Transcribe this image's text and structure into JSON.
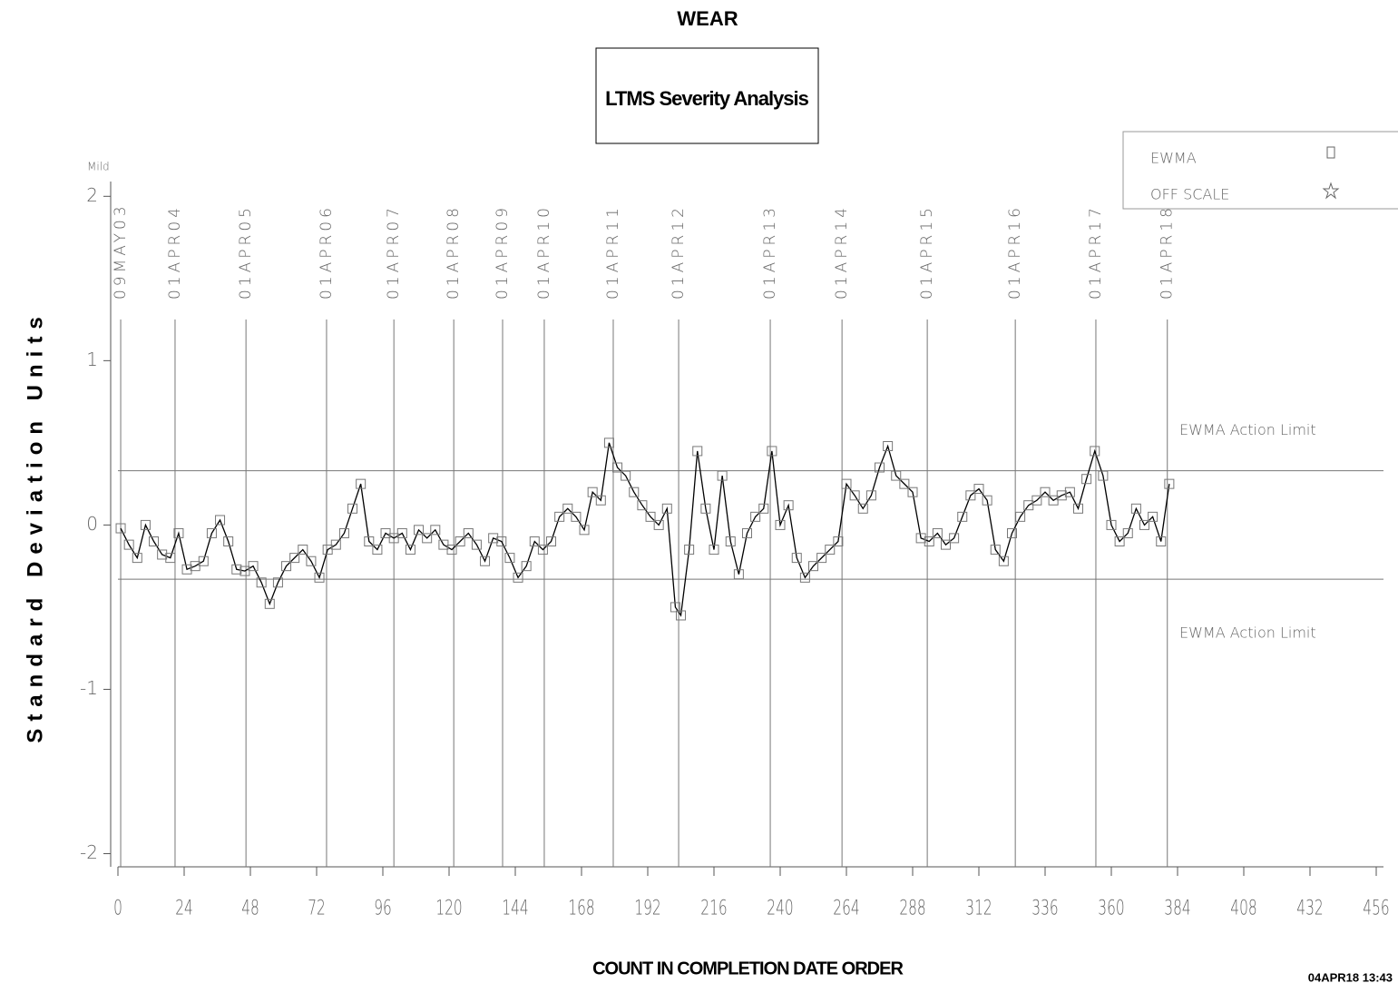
{
  "chart_data": {
    "type": "line",
    "title": "WEAR",
    "subtitle": "LTMS Severity Analysis",
    "x_label": "COUNT IN COMPLETION DATE ORDER",
    "y_label": "Standard Deviation Units",
    "y_top_label": "Mild",
    "timestamp": "04APR18 13:43",
    "xlim": [
      0,
      456
    ],
    "xticks": [
      0,
      24,
      48,
      72,
      96,
      120,
      144,
      168,
      192,
      216,
      240,
      264,
      288,
      312,
      336,
      360,
      384,
      408,
      432,
      456
    ],
    "ylim": [
      -2.08,
      2.09
    ],
    "yticks": [
      -2,
      -1,
      0,
      1,
      2
    ],
    "legend": {
      "position": "upper right",
      "entries": [
        "EWMA",
        "OFF SCALE"
      ]
    },
    "action_limits": [
      {
        "label": "EWMA Action Limit",
        "value": 0.33
      },
      {
        "label": "EWMA Action Limit",
        "value": -0.33
      }
    ],
    "date_lines": [
      {
        "label": "09MAY03",
        "x": 1
      },
      {
        "label": "01APR04",
        "x": 20.7
      },
      {
        "label": "01APR05",
        "x": 46.4
      },
      {
        "label": "01APR06",
        "x": 75.6
      },
      {
        "label": "01APR07",
        "x": 100
      },
      {
        "label": "01APR08",
        "x": 121.7
      },
      {
        "label": "01APR09",
        "x": 139.4
      },
      {
        "label": "01APR10",
        "x": 154.5
      },
      {
        "label": "01APR11",
        "x": 179.5
      },
      {
        "label": "01APR12",
        "x": 203.2
      },
      {
        "label": "01APR13",
        "x": 236.4
      },
      {
        "label": "01APR14",
        "x": 262.4
      },
      {
        "label": "01APR15",
        "x": 293.3
      },
      {
        "label": "01APR16",
        "x": 325.2
      },
      {
        "label": "01APR17",
        "x": 354.4
      },
      {
        "label": "01APR18",
        "x": 380.3
      }
    ],
    "x": [
      1,
      4,
      7,
      10,
      13,
      16,
      19,
      22,
      25,
      28,
      31,
      34,
      37,
      40,
      43,
      46,
      49,
      52,
      55,
      58,
      61,
      64,
      67,
      70,
      73,
      76,
      79,
      82,
      85,
      88,
      91,
      94,
      97,
      100,
      103,
      106,
      109,
      112,
      115,
      118,
      121,
      124,
      127,
      130,
      133,
      136,
      139,
      142,
      145,
      148,
      151,
      154,
      157,
      160,
      163,
      166,
      169,
      172,
      175,
      178,
      181,
      184,
      187,
      190,
      193,
      196,
      199,
      202,
      204,
      207,
      210,
      213,
      216,
      219,
      222,
      225,
      228,
      231,
      234,
      237,
      240,
      243,
      246,
      249,
      252,
      255,
      258,
      261,
      264,
      267,
      270,
      273,
      276,
      279,
      282,
      285,
      288,
      291,
      294,
      297,
      300,
      303,
      306,
      309,
      312,
      315,
      318,
      321,
      324,
      327,
      330,
      333,
      336,
      339,
      342,
      345,
      348,
      351,
      354,
      357,
      360,
      363,
      366,
      369,
      372,
      375,
      378,
      381
    ],
    "series": [
      {
        "name": "EWMA",
        "color": "#000000",
        "marker_color": "#777777",
        "values": [
          -0.02,
          -0.12,
          -0.2,
          0.0,
          -0.1,
          -0.18,
          -0.2,
          -0.05,
          -0.27,
          -0.25,
          -0.22,
          -0.05,
          0.03,
          -0.1,
          -0.27,
          -0.28,
          -0.25,
          -0.35,
          -0.48,
          -0.35,
          -0.25,
          -0.2,
          -0.15,
          -0.22,
          -0.32,
          -0.15,
          -0.12,
          -0.05,
          0.1,
          0.25,
          -0.1,
          -0.15,
          -0.05,
          -0.08,
          -0.05,
          -0.15,
          -0.03,
          -0.08,
          -0.03,
          -0.12,
          -0.15,
          -0.1,
          -0.05,
          -0.12,
          -0.22,
          -0.08,
          -0.1,
          -0.2,
          -0.32,
          -0.25,
          -0.1,
          -0.15,
          -0.1,
          0.05,
          0.1,
          0.05,
          -0.03,
          0.2,
          0.15,
          0.5,
          0.35,
          0.3,
          0.2,
          0.12,
          0.05,
          0.0,
          0.1,
          -0.5,
          -0.55,
          -0.15,
          0.45,
          0.1,
          -0.15,
          0.3,
          -0.1,
          -0.3,
          -0.05,
          0.05,
          0.1,
          0.45,
          0.0,
          0.12,
          -0.2,
          -0.32,
          -0.25,
          -0.2,
          -0.15,
          -0.1,
          0.25,
          0.18,
          0.1,
          0.18,
          0.35,
          0.48,
          0.3,
          0.25,
          0.2,
          -0.08,
          -0.1,
          -0.05,
          -0.12,
          -0.08,
          0.05,
          0.18,
          0.22,
          0.15,
          -0.15,
          -0.22,
          -0.05,
          0.05,
          0.12,
          0.15,
          0.2,
          0.15,
          0.18,
          0.2,
          0.1,
          0.28,
          0.45,
          0.3,
          0.0,
          -0.1,
          -0.05,
          0.1,
          0.0,
          0.05,
          -0.1,
          0.25
        ]
      }
    ]
  }
}
